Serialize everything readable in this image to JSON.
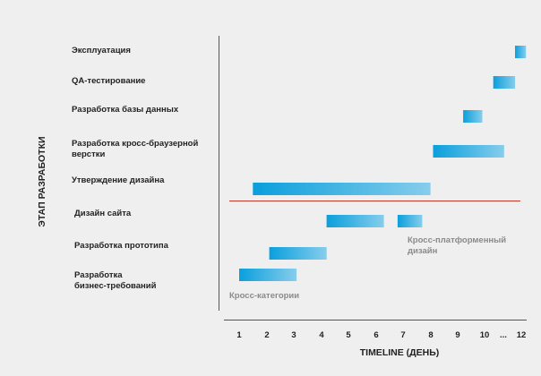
{
  "chart_data": {
    "type": "bar",
    "orientation": "horizontal",
    "subtype": "gantt",
    "ylabel": "ЭТАП РАЗРАБОТКИ",
    "xlabel": "TIMELINE (ДЕНЬ)",
    "x_ticks": [
      "1",
      "2",
      "3",
      "4",
      "5",
      "6",
      "7",
      "8",
      "9",
      "10",
      "...",
      "12"
    ],
    "categories": [
      [
        "Эксплуатация"
      ],
      [
        "QA-тестирование"
      ],
      [
        "Разработка базы данных"
      ],
      [
        "Разработка кросс-браузерной",
        "верстки"
      ],
      [
        "Утверждение дизайна"
      ],
      [
        "Дизайн сайта"
      ],
      [
        "Разработка прототипа"
      ],
      [
        "Разработка",
        "бизнес-требований"
      ]
    ],
    "tasks": [
      {
        "segments": [
          [
            11.1,
            11.5
          ]
        ]
      },
      {
        "segments": [
          [
            10.3,
            11.1
          ]
        ]
      },
      {
        "segments": [
          [
            9.2,
            9.9
          ]
        ]
      },
      {
        "segments": [
          [
            8.1,
            10.7
          ]
        ]
      },
      {
        "segments": [
          [
            1.5,
            8.0
          ]
        ]
      },
      {
        "segments": [
          [
            4.2,
            6.3
          ],
          [
            6.8,
            7.7
          ]
        ]
      },
      {
        "segments": [
          [
            2.1,
            4.2
          ]
        ]
      },
      {
        "segments": [
          [
            1.0,
            3.1
          ]
        ]
      }
    ],
    "annotations": [
      {
        "text": [
          "Кросс-категории"
        ]
      },
      {
        "text": [
          "Кросс-платформенный",
          "дизайн"
        ]
      }
    ],
    "xlim": [
      0.9,
      12.3
    ],
    "grid": false,
    "colors": {
      "bar_dark": "#0a9fdc",
      "bar_light": "#86cdec",
      "separator": "#c0392b",
      "axis": "#555555",
      "annotation": "#8a8a8a"
    }
  }
}
